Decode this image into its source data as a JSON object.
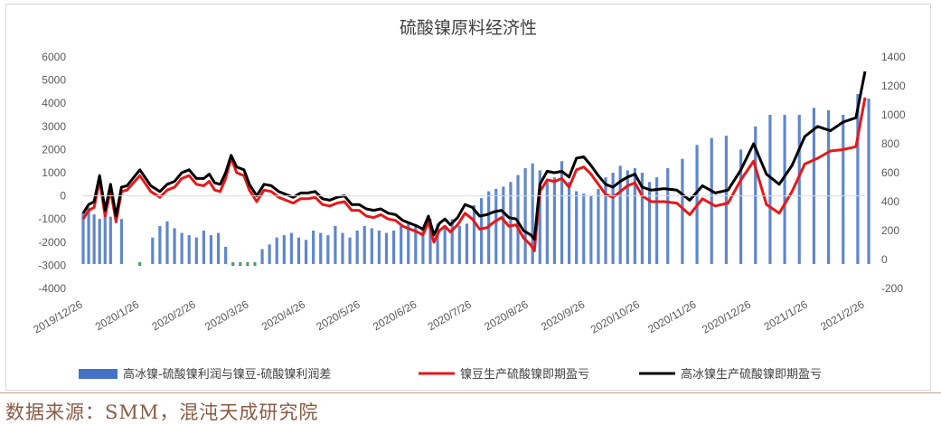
{
  "chart_data": {
    "type": "bar+line",
    "title": "硫酸镍原料经济性",
    "left_axis": {
      "ticks": [
        6000,
        5000,
        4000,
        3000,
        2000,
        1000,
        0,
        -1000,
        -2000,
        -3000,
        -4000
      ],
      "ylim": [
        -4000,
        6000
      ]
    },
    "right_axis": {
      "ticks": [
        1400,
        1200,
        1000,
        800,
        600,
        400,
        200,
        0,
        -200
      ],
      "ylim": [
        -200,
        1400
      ]
    },
    "x_ticks": [
      "2019/12/26",
      "2020/1/26",
      "2020/2/26",
      "2020/3/26",
      "2020/4/26",
      "2020/5/26",
      "2020/6/26",
      "2020/7/26",
      "2020/8/26",
      "2020/9/26",
      "2020/10/26",
      "2020/11/26",
      "2020/12/26",
      "2021/1/26",
      "2021/2/26"
    ],
    "x_range": [
      "2019/12/26",
      "2021/2/26"
    ],
    "legend_position": "bottom",
    "colors": {
      "bar": "#4472c4",
      "bar_negative": "#2e8b57",
      "red_line": "#e81717",
      "black_line": "#000000"
    },
    "series": [
      {
        "name": "高冰镍-硫酸镍利润与镍豆-硫酸镍利润差",
        "type": "bar",
        "axis": "left",
        "x": [
          "2019/12/26",
          "2019/12/29",
          "2020/1/1",
          "2020/1/4",
          "2020/1/7",
          "2020/1/10",
          "2020/1/16",
          "2020/1/26",
          "2020/2/2",
          "2020/2/6",
          "2020/2/10",
          "2020/2/14",
          "2020/2/18",
          "2020/2/22",
          "2020/2/26",
          "2020/3/1",
          "2020/3/5",
          "2020/3/9",
          "2020/3/13",
          "2020/3/17",
          "2020/3/21",
          "2020/3/25",
          "2020/3/29",
          "2020/4/2",
          "2020/4/6",
          "2020/4/10",
          "2020/4/14",
          "2020/4/18",
          "2020/4/22",
          "2020/4/26",
          "2020/4/30",
          "2020/5/4",
          "2020/5/8",
          "2020/5/12",
          "2020/5/16",
          "2020/5/20",
          "2020/5/24",
          "2020/5/28",
          "2020/6/1",
          "2020/6/5",
          "2020/6/9",
          "2020/6/13",
          "2020/6/17",
          "2020/6/21",
          "2020/6/25",
          "2020/6/29",
          "2020/7/3",
          "2020/7/7",
          "2020/7/11",
          "2020/7/15",
          "2020/7/19",
          "2020/7/23",
          "2020/7/27",
          "2020/7/31",
          "2020/8/4",
          "2020/8/8",
          "2020/8/12",
          "2020/8/16",
          "2020/8/20",
          "2020/8/24",
          "2020/8/28",
          "2020/9/1",
          "2020/9/5",
          "2020/9/9",
          "2020/9/13",
          "2020/9/17",
          "2020/9/21",
          "2020/9/25",
          "2020/9/29",
          "2020/10/3",
          "2020/10/7",
          "2020/10/11",
          "2020/10/15",
          "2020/10/19",
          "2020/10/23",
          "2020/10/27",
          "2020/10/31",
          "2020/11/4",
          "2020/11/10",
          "2020/11/18",
          "2020/11/26",
          "2020/12/4",
          "2020/12/12",
          "2020/12/20",
          "2020/12/28",
          "2021/1/5",
          "2021/1/13",
          "2021/1/21",
          "2021/1/29",
          "2021/2/6",
          "2021/2/14",
          "2021/2/22",
          "2021/2/28"
        ],
        "values": [
          -700,
          -500,
          -800,
          -1000,
          -600,
          -900,
          -1000,
          -3000,
          -1800,
          -1300,
          -1100,
          -1400,
          -1600,
          -1700,
          -1800,
          -1500,
          -1700,
          -1600,
          -2200,
          -2900,
          -2950,
          -3050,
          -2950,
          -2300,
          -2100,
          -1800,
          -1700,
          -1600,
          -1800,
          -1900,
          -1500,
          -1600,
          -1700,
          -1300,
          -1600,
          -1800,
          -1500,
          -1300,
          -1400,
          -1500,
          -1600,
          -1500,
          -1300,
          -1200,
          -1300,
          -1400,
          -1000,
          -1200,
          -1400,
          -1000,
          -1300,
          -1200,
          -400,
          -100,
          200,
          300,
          400,
          600,
          900,
          1200,
          1400,
          1100,
          600,
          800,
          1500,
          600,
          200,
          100,
          0,
          300,
          800,
          1000,
          1300,
          1100,
          1200,
          1000,
          600,
          800,
          1200,
          1600,
          2200,
          2500,
          2600,
          2000,
          3000,
          3500,
          3500,
          3500,
          3800,
          3700,
          3500,
          4400,
          4200
        ]
      },
      {
        "name": "镍豆生产硫酸镍即期盈亏",
        "type": "line",
        "axis": "right",
        "x": [
          "2019/12/26",
          "2019/12/29",
          "2020/1/1",
          "2020/1/4",
          "2020/1/7",
          "2020/1/10",
          "2020/1/13",
          "2020/1/16",
          "2020/1/19",
          "2020/1/26",
          "2020/2/1",
          "2020/2/6",
          "2020/2/10",
          "2020/2/14",
          "2020/2/18",
          "2020/2/22",
          "2020/2/26",
          "2020/3/1",
          "2020/3/4",
          "2020/3/7",
          "2020/3/10",
          "2020/3/13",
          "2020/3/16",
          "2020/3/19",
          "2020/3/23",
          "2020/3/26",
          "2020/3/30",
          "2020/4/3",
          "2020/4/7",
          "2020/4/11",
          "2020/4/15",
          "2020/4/19",
          "2020/4/23",
          "2020/4/27",
          "2020/5/1",
          "2020/5/5",
          "2020/5/9",
          "2020/5/13",
          "2020/5/17",
          "2020/5/21",
          "2020/5/25",
          "2020/5/29",
          "2020/6/2",
          "2020/6/6",
          "2020/6/10",
          "2020/6/14",
          "2020/6/18",
          "2020/6/22",
          "2020/6/26",
          "2020/6/29",
          "2020/7/2",
          "2020/7/5",
          "2020/7/8",
          "2020/7/11",
          "2020/7/14",
          "2020/7/18",
          "2020/7/22",
          "2020/7/26",
          "2020/7/30",
          "2020/8/3",
          "2020/8/7",
          "2020/8/11",
          "2020/8/15",
          "2020/8/19",
          "2020/8/23",
          "2020/8/27",
          "2020/8/29",
          "2020/9/1",
          "2020/9/5",
          "2020/9/9",
          "2020/9/13",
          "2020/9/17",
          "2020/9/21",
          "2020/9/25",
          "2020/9/29",
          "2020/10/3",
          "2020/10/7",
          "2020/10/11",
          "2020/10/15",
          "2020/10/19",
          "2020/10/23",
          "2020/10/27",
          "2020/11/1",
          "2020/11/8",
          "2020/11/15",
          "2020/11/22",
          "2020/11/29",
          "2020/12/6",
          "2020/12/13",
          "2020/12/20",
          "2020/12/27",
          "2021/1/3",
          "2021/1/10",
          "2021/1/17",
          "2021/1/24",
          "2021/1/31",
          "2021/2/7",
          "2021/2/14",
          "2021/2/21",
          "2021/2/26"
        ],
        "values": [
          280,
          340,
          360,
          550,
          300,
          480,
          260,
          470,
          480,
          580,
          470,
          430,
          480,
          500,
          560,
          580,
          520,
          510,
          540,
          480,
          470,
          560,
          700,
          600,
          580,
          480,
          400,
          480,
          470,
          430,
          410,
          390,
          420,
          420,
          430,
          380,
          370,
          390,
          400,
          340,
          340,
          300,
          290,
          310,
          280,
          270,
          230,
          210,
          190,
          170,
          260,
          120,
          200,
          230,
          190,
          240,
          320,
          280,
          210,
          220,
          260,
          290,
          230,
          240,
          150,
          100,
          60,
          470,
          550,
          540,
          560,
          500,
          620,
          640,
          590,
          520,
          450,
          430,
          470,
          510,
          530,
          440,
          400,
          400,
          390,
          310,
          420,
          370,
          390,
          550,
          680,
          380,
          320,
          470,
          660,
          700,
          750,
          760,
          780,
          1120
        ]
      },
      {
        "name": "高冰镍生产硫酸镍即期盈亏",
        "type": "line",
        "axis": "right",
        "x": [
          "2019/12/26",
          "2019/12/29",
          "2020/1/1",
          "2020/1/4",
          "2020/1/7",
          "2020/1/10",
          "2020/1/13",
          "2020/1/16",
          "2020/1/19",
          "2020/1/26",
          "2020/2/1",
          "2020/2/6",
          "2020/2/10",
          "2020/2/14",
          "2020/2/18",
          "2020/2/22",
          "2020/2/26",
          "2020/3/1",
          "2020/3/4",
          "2020/3/7",
          "2020/3/10",
          "2020/3/13",
          "2020/3/16",
          "2020/3/19",
          "2020/3/23",
          "2020/3/26",
          "2020/3/30",
          "2020/4/3",
          "2020/4/7",
          "2020/4/11",
          "2020/4/15",
          "2020/4/19",
          "2020/4/23",
          "2020/4/27",
          "2020/5/1",
          "2020/5/5",
          "2020/5/9",
          "2020/5/13",
          "2020/5/17",
          "2020/5/21",
          "2020/5/25",
          "2020/5/29",
          "2020/6/2",
          "2020/6/6",
          "2020/6/10",
          "2020/6/14",
          "2020/6/18",
          "2020/6/22",
          "2020/6/26",
          "2020/6/29",
          "2020/7/2",
          "2020/7/5",
          "2020/7/8",
          "2020/7/11",
          "2020/7/14",
          "2020/7/18",
          "2020/7/22",
          "2020/7/26",
          "2020/7/30",
          "2020/8/3",
          "2020/8/7",
          "2020/8/11",
          "2020/8/15",
          "2020/8/19",
          "2020/8/23",
          "2020/8/27",
          "2020/8/29",
          "2020/9/1",
          "2020/9/5",
          "2020/9/9",
          "2020/9/13",
          "2020/9/17",
          "2020/9/21",
          "2020/9/25",
          "2020/9/29",
          "2020/10/3",
          "2020/10/7",
          "2020/10/11",
          "2020/10/15",
          "2020/10/19",
          "2020/10/23",
          "2020/10/27",
          "2020/11/1",
          "2020/11/8",
          "2020/11/15",
          "2020/11/22",
          "2020/11/29",
          "2020/12/6",
          "2020/12/13",
          "2020/12/20",
          "2020/12/27",
          "2021/1/3",
          "2021/1/10",
          "2021/1/17",
          "2021/1/24",
          "2021/1/31",
          "2021/2/7",
          "2021/2/14",
          "2021/2/21",
          "2021/2/26"
        ],
        "values": [
          320,
          380,
          400,
          580,
          340,
          520,
          300,
          500,
          510,
          620,
          510,
          470,
          520,
          540,
          600,
          620,
          560,
          560,
          590,
          530,
          520,
          600,
          720,
          640,
          620,
          520,
          440,
          520,
          510,
          470,
          450,
          430,
          460,
          460,
          470,
          420,
          410,
          430,
          440,
          380,
          380,
          350,
          340,
          350,
          320,
          310,
          270,
          250,
          230,
          210,
          300,
          170,
          250,
          280,
          240,
          290,
          380,
          360,
          300,
          310,
          330,
          340,
          290,
          280,
          200,
          170,
          140,
          520,
          610,
          600,
          610,
          570,
          700,
          710,
          650,
          580,
          520,
          500,
          540,
          570,
          590,
          500,
          480,
          490,
          480,
          410,
          510,
          460,
          480,
          620,
          800,
          590,
          520,
          650,
          850,
          920,
          890,
          950,
          980,
          1300
        ]
      }
    ]
  },
  "source": "数据来源：SMM，混沌天成研究院"
}
